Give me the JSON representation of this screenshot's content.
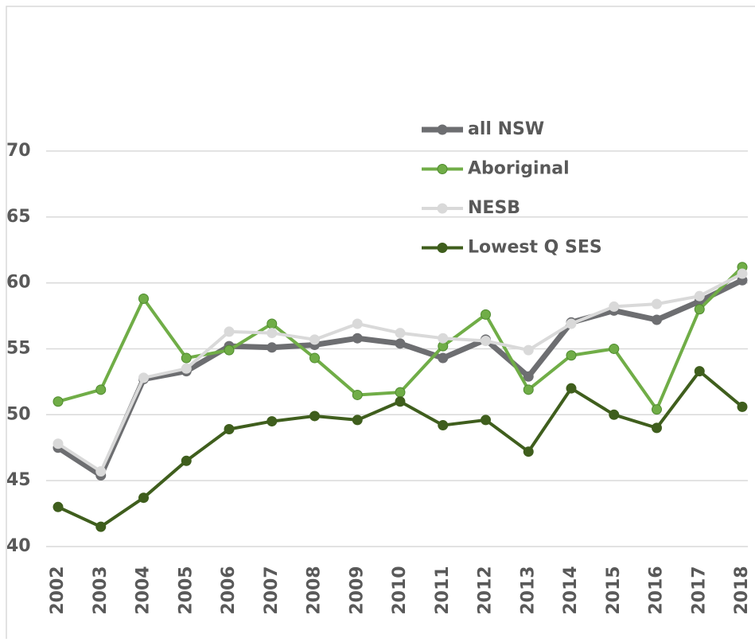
{
  "chart_data": {
    "type": "line",
    "categories": [
      "2002",
      "2003",
      "2004",
      "2005",
      "2006",
      "2007",
      "2008",
      "2009",
      "2010",
      "2011",
      "2012",
      "2013",
      "2014",
      "2015",
      "2016",
      "2017",
      "2018"
    ],
    "series": [
      {
        "name": "all NSW",
        "color": "#6d6e71",
        "values": [
          47.5,
          45.4,
          52.7,
          53.3,
          55.2,
          55.1,
          55.3,
          55.8,
          55.4,
          54.3,
          55.7,
          52.9,
          57.0,
          57.9,
          57.2,
          58.6,
          60.2
        ]
      },
      {
        "name": "Aboriginal",
        "color": "#70ad47",
        "values": [
          51.0,
          51.9,
          58.8,
          54.3,
          54.9,
          56.9,
          54.3,
          51.5,
          51.7,
          55.2,
          57.6,
          51.9,
          54.5,
          55.0,
          50.4,
          58.0,
          61.2
        ]
      },
      {
        "name": "NESB",
        "color": "#d9d9d9",
        "values": [
          47.8,
          45.7,
          52.8,
          53.5,
          56.3,
          56.2,
          55.7,
          56.9,
          56.2,
          55.8,
          55.6,
          54.9,
          56.9,
          58.2,
          58.4,
          59.0,
          60.7
        ]
      },
      {
        "name": "Lowest Q SES",
        "color": "#3f5e1d",
        "values": [
          43.0,
          41.5,
          43.7,
          46.5,
          48.9,
          49.5,
          49.9,
          49.6,
          51.0,
          49.2,
          49.6,
          47.2,
          52.0,
          50.0,
          49.0,
          53.3,
          50.6
        ]
      }
    ],
    "ylim": [
      40,
      75
    ],
    "yticks": [
      40,
      45,
      50,
      55,
      60,
      65,
      70
    ],
    "grid": true,
    "legend": "upper right"
  }
}
